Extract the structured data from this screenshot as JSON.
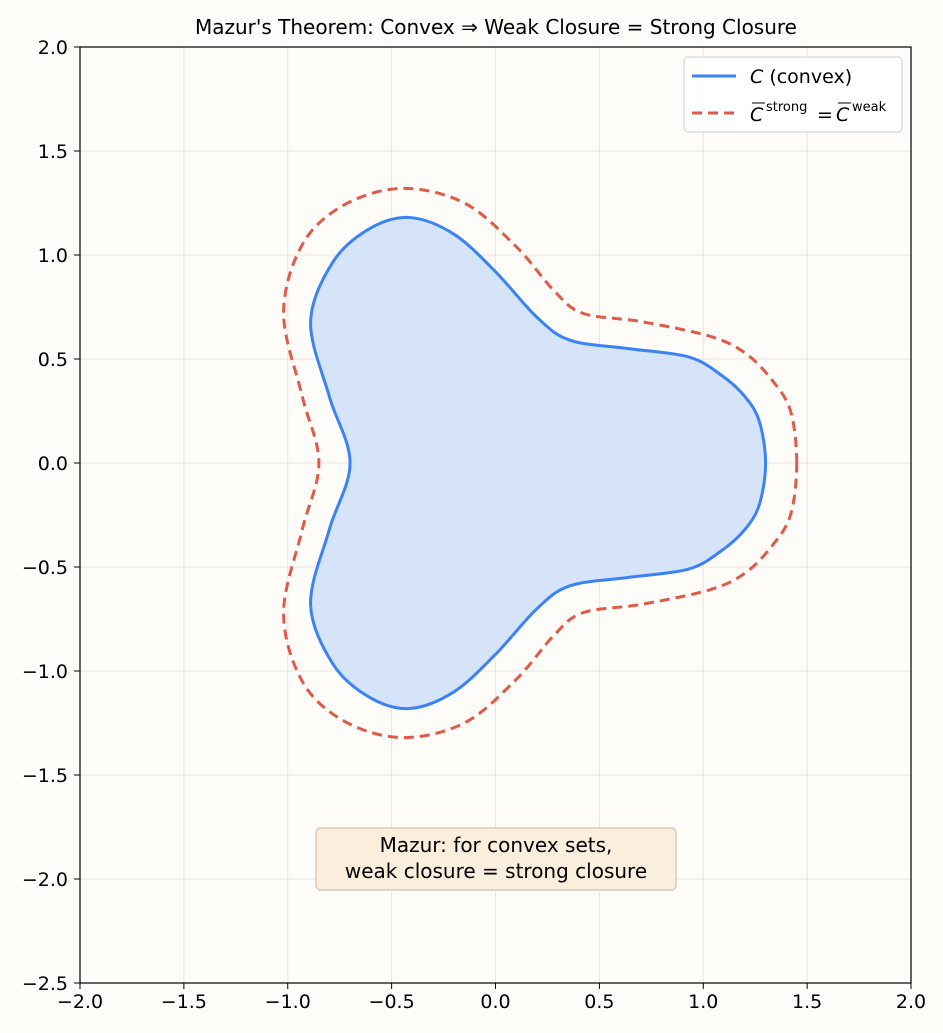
{
  "chart_data": {
    "type": "line",
    "title": "Mazur's Theorem: Convex ⇒ Weak Closure = Strong Closure",
    "xlabel": "",
    "ylabel": "",
    "xlim": [
      -2.0,
      2.0
    ],
    "ylim": [
      -2.5,
      2.0
    ],
    "xticks": [
      -2.0,
      -1.5,
      -1.0,
      -0.5,
      0.0,
      0.5,
      1.0,
      1.5,
      2.0
    ],
    "yticks": [
      -2.5,
      -2.0,
      -1.5,
      -1.0,
      -0.5,
      0.0,
      0.5,
      1.0,
      1.5,
      2.0
    ],
    "x_tick_labels": [
      "−2.0",
      "−1.5",
      "−1.0",
      "−0.5",
      "0.0",
      "0.5",
      "1.0",
      "1.5",
      "2.0"
    ],
    "y_tick_labels": [
      "−2.5",
      "−2.0",
      "−1.5",
      "−1.0",
      "−0.5",
      "0.0",
      "0.5",
      "1.0",
      "1.5",
      "2.0"
    ],
    "grid": true,
    "legend_position": "top-right",
    "series": [
      {
        "name": "C (convex)",
        "legend_main": "C",
        "legend_rest": " (convex)",
        "style": "solid",
        "color": "#3b82f6",
        "fill": "#d6e4f9",
        "x": [
          1.3,
          1.27,
          1.2,
          1.09,
          0.93,
          0.64,
          0.36,
          0.2,
          0.0,
          -0.2,
          -0.41,
          -0.6,
          -0.78,
          -0.89,
          -0.8,
          -0.7,
          -0.8,
          -0.89,
          -0.78,
          -0.6,
          -0.41,
          -0.2,
          0.0,
          0.2,
          0.36,
          0.64,
          0.93,
          1.09,
          1.2,
          1.27,
          1.3
        ],
        "y": [
          0.0,
          0.2,
          0.32,
          0.42,
          0.51,
          0.55,
          0.59,
          0.7,
          0.92,
          1.1,
          1.18,
          1.13,
          0.97,
          0.68,
          0.32,
          0.0,
          -0.32,
          -0.68,
          -0.97,
          -1.13,
          -1.18,
          -1.1,
          -0.92,
          -0.7,
          -0.59,
          -0.55,
          -0.51,
          -0.42,
          -0.32,
          -0.2,
          0.0
        ]
      },
      {
        "name": "C̅ strong = C̅ weak",
        "legend_base": "C",
        "legend_sup1": "strong",
        "legend_eq": "=",
        "legend_sup2": "weak",
        "style": "dashed",
        "color": "#e05a47",
        "x": [
          1.45,
          1.42,
          1.33,
          1.2,
          1.03,
          0.7,
          0.42,
          0.28,
          0.1,
          -0.15,
          -0.45,
          -0.73,
          -0.93,
          -1.02,
          -0.93,
          -0.85,
          -0.93,
          -1.02,
          -0.93,
          -0.73,
          -0.45,
          -0.15,
          0.1,
          0.28,
          0.42,
          0.7,
          1.03,
          1.2,
          1.33,
          1.42,
          1.45
        ],
        "y": [
          0.0,
          0.25,
          0.4,
          0.53,
          0.61,
          0.68,
          0.72,
          0.83,
          1.04,
          1.25,
          1.32,
          1.24,
          1.05,
          0.72,
          0.32,
          0.0,
          -0.32,
          -0.72,
          -1.05,
          -1.24,
          -1.32,
          -1.25,
          -1.04,
          -0.83,
          -0.72,
          -0.68,
          -0.61,
          -0.53,
          -0.4,
          -0.25,
          0.0
        ]
      }
    ],
    "annotation": {
      "line1": "Mazur: for convex sets,",
      "line2": "weak closure = strong closure",
      "x": 0.0,
      "y": -1.9,
      "bg": "#fbeedd",
      "border": "#d8cbb8"
    }
  }
}
